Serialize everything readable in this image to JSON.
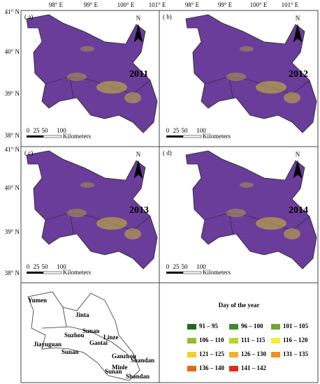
{
  "axes": {
    "top_labels": [
      "98° E",
      "99° E",
      "100° E",
      "101° E"
    ],
    "left_labels": [
      "41° N",
      "40° N",
      "39° N",
      "38° N"
    ]
  },
  "panels": [
    {
      "label": "( a)",
      "year": "2011"
    },
    {
      "label": "( b)",
      "year": "2012"
    },
    {
      "label": "( c)",
      "year": "2013"
    },
    {
      "label": "( d)",
      "year": "2014"
    }
  ],
  "north": "N",
  "scale": {
    "ticks": [
      "0",
      "25",
      "50",
      "100"
    ],
    "unit": "Kilometers"
  },
  "county_map": {
    "names": [
      "Yumen",
      "Jinta",
      "Jiayuguan",
      "Suzhou",
      "Sunan",
      "Sunan",
      "Linze",
      "Gaotai",
      "Ganzhou",
      "Minle",
      "Shandan",
      "Sunan",
      "Shandan"
    ]
  },
  "legend": {
    "title": "Day of the year",
    "items": [
      {
        "label": "91 – 95",
        "color": "#1e6b1e"
      },
      {
        "label": "96 – 100",
        "color": "#3e8c2a"
      },
      {
        "label": "101 – 105",
        "color": "#6aa832"
      },
      {
        "label": "106 – 110",
        "color": "#8fbf2a"
      },
      {
        "label": "111 – 115",
        "color": "#b5d62a"
      },
      {
        "label": "116 – 120",
        "color": "#f5ef2f"
      },
      {
        "label": "121 – 125",
        "color": "#f2cf2a"
      },
      {
        "label": "126 – 130",
        "color": "#f0b030"
      },
      {
        "label": "131 – 135",
        "color": "#ee9020"
      },
      {
        "label": "136 – 140",
        "color": "#e86818"
      },
      {
        "label": "141 – 142",
        "color": "#e03010"
      }
    ]
  }
}
